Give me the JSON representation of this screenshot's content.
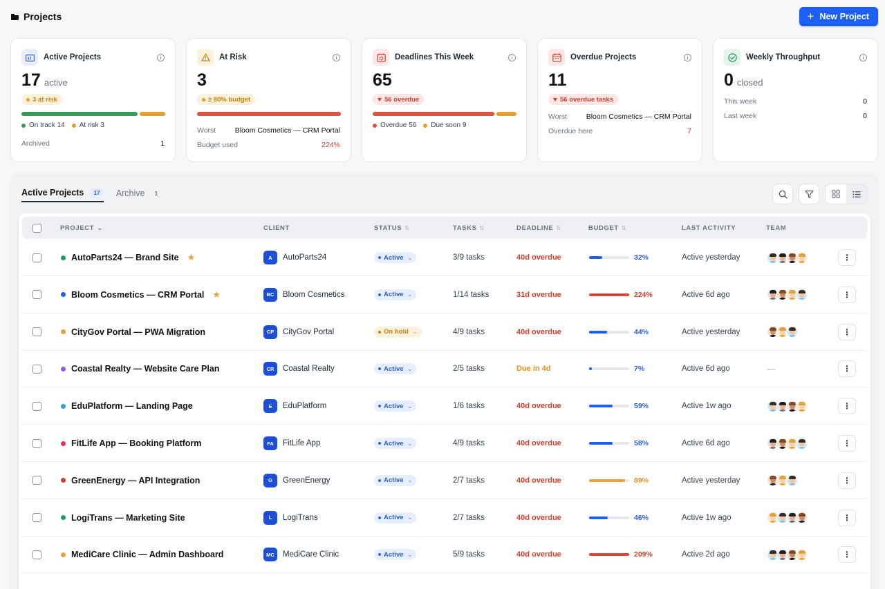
{
  "header": {
    "title": "Projects",
    "new_button": "New Project"
  },
  "cards": {
    "active": {
      "title": "Active Projects",
      "value": "17",
      "unit": "active",
      "badge": "3 at risk",
      "legend": [
        "On track 14",
        "At risk 3"
      ],
      "bar_fractions": [
        0.82,
        0.18
      ],
      "archived_label": "Archived",
      "archived_value": "1"
    },
    "at_risk": {
      "title": "At Risk",
      "value": "3",
      "badge": "≥ 80% budget",
      "bar_fraction": 1.0,
      "worst_label": "Worst",
      "worst_value": "Bloom Cosmetics — CRM Portal",
      "budget_label": "Budget used",
      "budget_value": "224%"
    },
    "deadlines": {
      "title": "Deadlines This Week",
      "value": "65",
      "badge": "56 overdue",
      "legend": [
        "Overdue 56",
        "Due soon 9"
      ],
      "bar_fractions": [
        0.86,
        0.14
      ]
    },
    "overdue": {
      "title": "Overdue Projects",
      "value": "11",
      "badge": "56 overdue tasks",
      "worst_label": "Worst",
      "worst_value": "Bloom Cosmetics — CRM Portal",
      "here_label": "Overdue here",
      "here_value": "7"
    },
    "throughput": {
      "title": "Weekly Throughput",
      "value": "0",
      "unit": "closed",
      "this_week_label": "This week",
      "this_week_value": "0",
      "last_week_label": "Last week",
      "last_week_value": "0"
    }
  },
  "tabs": [
    {
      "label": "Active Projects",
      "count": "17",
      "active": true
    },
    {
      "label": "Archive",
      "count": "1",
      "active": false
    }
  ],
  "table": {
    "columns": [
      "PROJECT",
      "CLIENT",
      "STATUS",
      "TASKS",
      "DEADLINE",
      "BUDGET",
      "LAST ACTIVITY",
      "TEAM"
    ],
    "rows": [
      {
        "name": "AutoParts24 — Brand Site",
        "starred": true,
        "dot": "#1f9d55",
        "client_initials": "A",
        "client": "AutoParts24",
        "status": "Active",
        "tasks": "3/9 tasks",
        "deadline": "40d overdue",
        "deadline_tone": "red",
        "budget_pct": "32%",
        "budget_fraction": 0.32,
        "budget_color": "#1d5ef5",
        "last_activity": "Active yesterday",
        "team": 4
      },
      {
        "name": "Bloom Cosmetics — CRM Portal",
        "starred": true,
        "dot": "#1d5ef5",
        "client_initials": "BC",
        "client": "Bloom Cosmetics",
        "status": "Active",
        "tasks": "1/14 tasks",
        "deadline": "31d overdue",
        "deadline_tone": "red",
        "budget_pct": "224%",
        "budget_fraction": 1.0,
        "budget_color": "#d9473a",
        "last_activity": "Active 6d ago",
        "team": 4
      },
      {
        "name": "CityGov Portal — PWA Migration",
        "starred": false,
        "dot": "#e9a23b",
        "client_initials": "CP",
        "client": "CityGov Portal",
        "status": "On hold",
        "tasks": "4/9 tasks",
        "deadline": "40d overdue",
        "deadline_tone": "red",
        "budget_pct": "44%",
        "budget_fraction": 0.44,
        "budget_color": "#1d5ef5",
        "last_activity": "Active yesterday",
        "team": 3
      },
      {
        "name": "Coastal Realty — Website Care Plan",
        "starred": false,
        "dot": "#8b5cf6",
        "client_initials": "CR",
        "client": "Coastal Realty",
        "status": "Active",
        "tasks": "2/5 tasks",
        "deadline": "Due in 4d",
        "deadline_tone": "amber",
        "budget_pct": "7%",
        "budget_fraction": 0.07,
        "budget_color": "#1d5ef5",
        "last_activity": "Active 6d ago",
        "team": 0,
        "no_team": "—"
      },
      {
        "name": "EduPlatform — Landing Page",
        "starred": false,
        "dot": "#2f9fdc",
        "client_initials": "E",
        "client": "EduPlatform",
        "status": "Active",
        "tasks": "1/6 tasks",
        "deadline": "40d overdue",
        "deadline_tone": "red",
        "budget_pct": "59%",
        "budget_fraction": 0.59,
        "budget_color": "#1d5ef5",
        "last_activity": "Active 1w ago",
        "team": 4
      },
      {
        "name": "FitLife App — Booking Platform",
        "starred": false,
        "dot": "#e0335c",
        "client_initials": "FA",
        "client": "FitLife App",
        "status": "Active",
        "tasks": "4/9 tasks",
        "deadline": "40d overdue",
        "deadline_tone": "red",
        "budget_pct": "58%",
        "budget_fraction": 0.58,
        "budget_color": "#1d5ef5",
        "last_activity": "Active 6d ago",
        "team": 4
      },
      {
        "name": "GreenEnergy — API Integration",
        "starred": false,
        "dot": "#d23f2e",
        "client_initials": "G",
        "client": "GreenEnergy",
        "status": "Active",
        "tasks": "2/7 tasks",
        "deadline": "40d overdue",
        "deadline_tone": "red",
        "budget_pct": "89%",
        "budget_fraction": 0.89,
        "budget_color": "#e9a23b",
        "last_activity": "Active yesterday",
        "team": 3
      },
      {
        "name": "LogiTrans — Marketing Site",
        "starred": false,
        "dot": "#1f9d55",
        "client_initials": "L",
        "client": "LogiTrans",
        "status": "Active",
        "tasks": "2/7 tasks",
        "deadline": "40d overdue",
        "deadline_tone": "red",
        "budget_pct": "46%",
        "budget_fraction": 0.46,
        "budget_color": "#1d5ef5",
        "last_activity": "Active 1w ago",
        "team": 4
      },
      {
        "name": "MediCare Clinic — Admin Dashboard",
        "starred": false,
        "dot": "#e9a23b",
        "client_initials": "MC",
        "client": "MediCare Clinic",
        "status": "Active",
        "tasks": "5/9 tasks",
        "deadline": "40d overdue",
        "deadline_tone": "red",
        "budget_pct": "209%",
        "budget_fraction": 1.0,
        "budget_color": "#d9473a",
        "last_activity": "Active 2d ago",
        "team": 4
      }
    ]
  },
  "colors": {
    "accent": "#1d5ef5",
    "danger": "#d23f2e",
    "warning": "#e9a23b",
    "success": "#1f9d55"
  },
  "icons": [
    "folder-icon",
    "plus-icon",
    "info-icon",
    "search-icon",
    "filter-icon",
    "grid-view-icon",
    "list-view-icon",
    "star-icon",
    "more-vertical-icon"
  ]
}
